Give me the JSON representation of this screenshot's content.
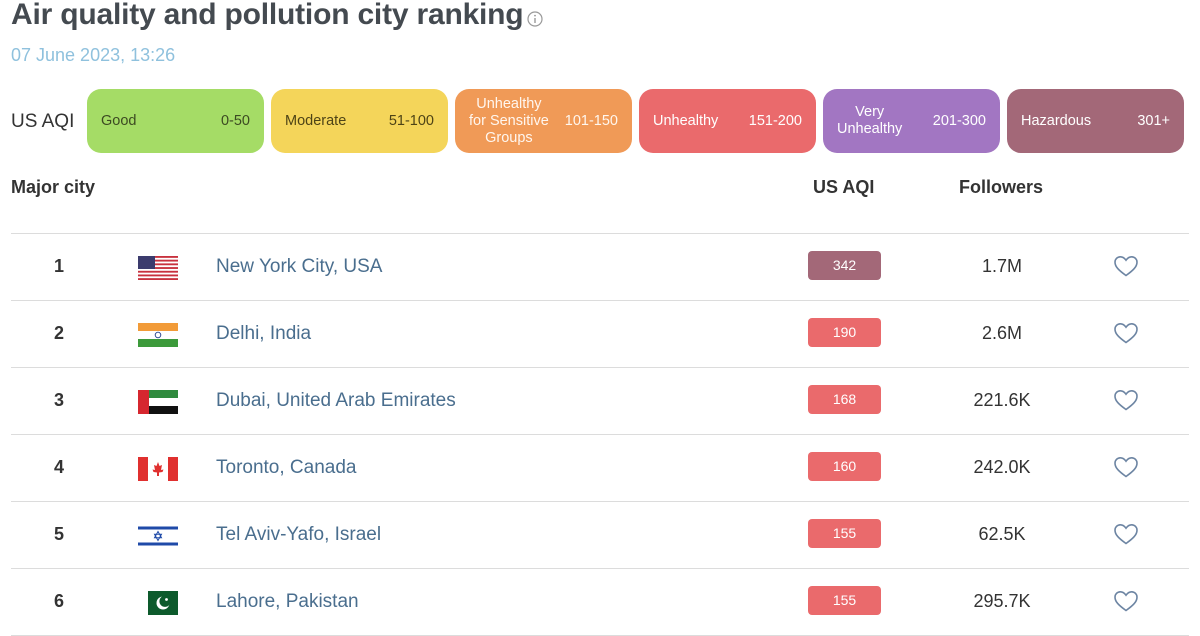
{
  "header": {
    "title": "Air quality and pollution city ranking",
    "date": "07 June 2023, 13:26"
  },
  "legend": {
    "label": "US AQI",
    "items": [
      {
        "name": "Good",
        "range": "0-50",
        "color": "#a5dc66"
      },
      {
        "name": "Moderate",
        "range": "51-100",
        "color": "#f4d55a"
      },
      {
        "name": "Unhealthy for Sensitive Groups",
        "line1": "Unhealthy",
        "line2": "for Sensitive",
        "line3": "Groups",
        "range": "101-150",
        "color": "#f09a57"
      },
      {
        "name": "Unhealthy",
        "range": "151-200",
        "color": "#ea6a6c"
      },
      {
        "name": "Very Unhealthy",
        "line1": "Very",
        "line2": "Unhealthy",
        "range": "201-300",
        "color": "#a276c2"
      },
      {
        "name": "Hazardous",
        "range": "301+",
        "color": "#a36878"
      }
    ]
  },
  "table": {
    "headers": {
      "city": "Major city",
      "aqi": "US AQI",
      "followers": "Followers"
    },
    "rows": [
      {
        "rank": "1",
        "flag": "usa-flag-icon",
        "city": "New York City, USA",
        "aqi": "342",
        "aqi_color": "#a36878",
        "followers": "1.7M"
      },
      {
        "rank": "2",
        "flag": "india-flag-icon",
        "city": "Delhi, India",
        "aqi": "190",
        "aqi_color": "#ea6a6c",
        "followers": "2.6M"
      },
      {
        "rank": "3",
        "flag": "uae-flag-icon",
        "city": "Dubai, United Arab Emirates",
        "aqi": "168",
        "aqi_color": "#ea6a6c",
        "followers": "221.6K"
      },
      {
        "rank": "4",
        "flag": "canada-flag-icon",
        "city": "Toronto, Canada",
        "aqi": "160",
        "aqi_color": "#ea6a6c",
        "followers": "242.0K"
      },
      {
        "rank": "5",
        "flag": "israel-flag-icon",
        "city": "Tel Aviv-Yafo, Israel",
        "aqi": "155",
        "aqi_color": "#ea6a6c",
        "followers": "62.5K"
      },
      {
        "rank": "6",
        "flag": "pakistan-flag-icon",
        "city": "Lahore, Pakistan",
        "aqi": "155",
        "aqi_color": "#ea6a6c",
        "followers": "295.7K"
      }
    ]
  },
  "icons": {
    "info": "info-icon",
    "favorite": "heart-outline-icon"
  }
}
